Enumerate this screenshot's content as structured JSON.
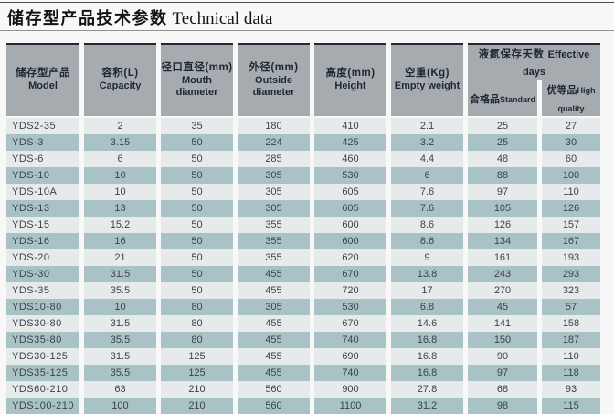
{
  "title": {
    "zh": "储存型产品技术参数",
    "en": "Technical data"
  },
  "table": {
    "columns": [
      {
        "zh": "储存型产品",
        "en": "Model"
      },
      {
        "zh": "容积(L)",
        "en": "Capacity"
      },
      {
        "zh": "径口直径(mm)",
        "en": "Mouth diameter"
      },
      {
        "zh": "外径(mm)",
        "en": "Outside diameter"
      },
      {
        "zh": "高度(mm)",
        "en": "Height"
      },
      {
        "zh": "空重(Kg)",
        "en": "Empty weight"
      }
    ],
    "group": {
      "zh": "液氮保存天数",
      "en": "Effective days",
      "sub": [
        {
          "zh": "合格品",
          "en": "Standard"
        },
        {
          "zh": "优等品",
          "en": "High quality"
        }
      ]
    },
    "rows": [
      [
        "YDS2-35",
        "2",
        "35",
        "180",
        "410",
        "2.1",
        "25",
        "27"
      ],
      [
        "YDS-3",
        "3.15",
        "50",
        "224",
        "425",
        "3.2",
        "25",
        "30"
      ],
      [
        "YDS-6",
        "6",
        "50",
        "285",
        "460",
        "4.4",
        "48",
        "60"
      ],
      [
        "YDS-10",
        "10",
        "50",
        "305",
        "530",
        "6",
        "88",
        "100"
      ],
      [
        "YDS-10A",
        "10",
        "50",
        "305",
        "605",
        "7.6",
        "97",
        "110"
      ],
      [
        "YDS-13",
        "13",
        "50",
        "305",
        "605",
        "7.6",
        "105",
        "126"
      ],
      [
        "YDS-15",
        "15.2",
        "50",
        "355",
        "600",
        "8.6",
        "126",
        "157"
      ],
      [
        "YDS-16",
        "16",
        "50",
        "355",
        "600",
        "8.6",
        "134",
        "167"
      ],
      [
        "YDS-20",
        "21",
        "50",
        "355",
        "620",
        "9",
        "161",
        "193"
      ],
      [
        "YDS-30",
        "31.5",
        "50",
        "455",
        "670",
        "13.8",
        "243",
        "293"
      ],
      [
        "YDS-35",
        "35.5",
        "50",
        "455",
        "720",
        "17",
        "270",
        "323"
      ],
      [
        "YDS10-80",
        "10",
        "80",
        "305",
        "530",
        "6.8",
        "45",
        "57"
      ],
      [
        "YDS30-80",
        "31.5",
        "80",
        "455",
        "670",
        "14.6",
        "141",
        "158"
      ],
      [
        "YDS35-80",
        "35.5",
        "80",
        "455",
        "740",
        "16.8",
        "150",
        "187"
      ],
      [
        "YDS30-125",
        "31.5",
        "125",
        "455",
        "690",
        "16.8",
        "90",
        "110"
      ],
      [
        "YDS35-125",
        "35.5",
        "125",
        "455",
        "740",
        "16.8",
        "97",
        "118"
      ],
      [
        "YDS60-210",
        "63",
        "210",
        "560",
        "900",
        "27.8",
        "68",
        "93"
      ],
      [
        "YDS100-210",
        "100",
        "210",
        "560",
        "1100",
        "31.2",
        "98",
        "115"
      ]
    ]
  },
  "colors": {
    "header_bg": "#a6abaf",
    "header_top_border": "#232833",
    "row_light": "#e7eaea",
    "row_teal": "#a9c2c6",
    "text": "#3a424d"
  }
}
